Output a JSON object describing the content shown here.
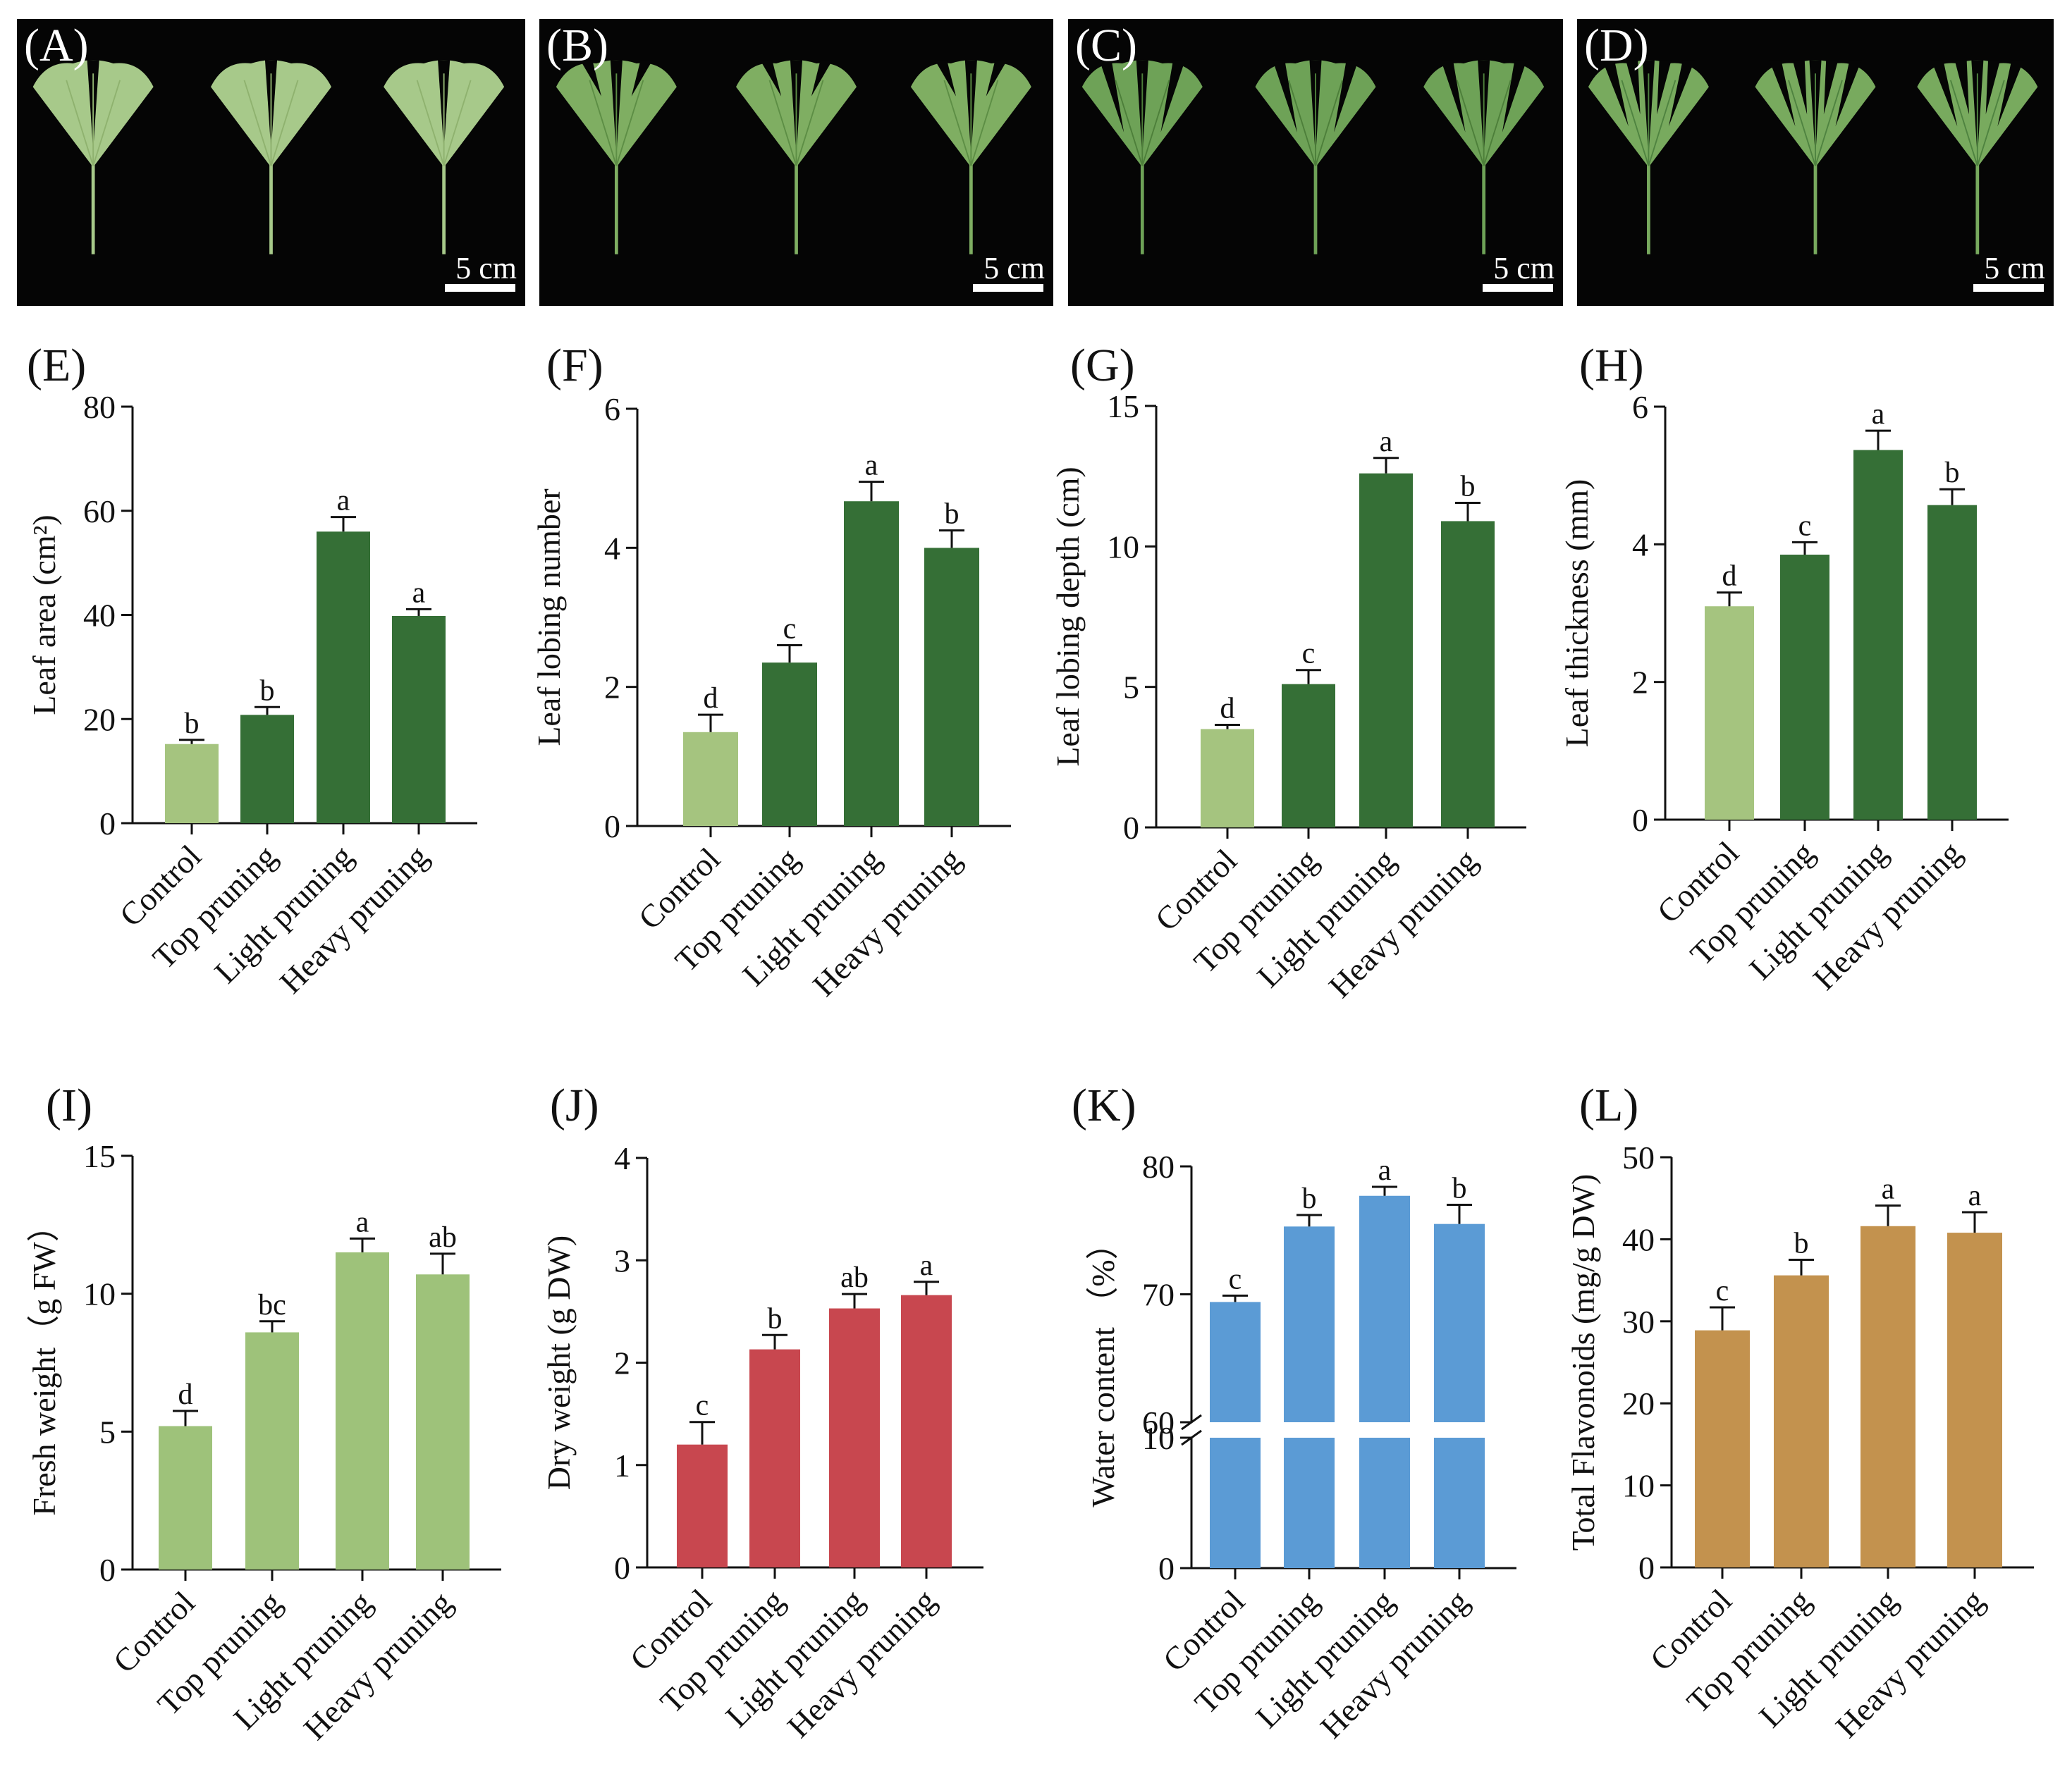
{
  "photos": [
    {
      "letter": "(A)",
      "scale_label": "5 cm",
      "leaf_color": "#a7c98a",
      "leaf_dark": "#8fb26f",
      "leaf_style": "fan"
    },
    {
      "letter": "(B)",
      "scale_label": "5 cm",
      "leaf_color": "#7fae62",
      "leaf_dark": "#5d8e45",
      "leaf_style": "cleft"
    },
    {
      "letter": "(C)",
      "scale_label": "5 cm",
      "leaf_color": "#6ea257",
      "leaf_dark": "#4d7f3a",
      "leaf_style": "deep"
    },
    {
      "letter": "(D)",
      "scale_label": "5 cm",
      "leaf_color": "#78aa5e",
      "leaf_dark": "#4f8340",
      "leaf_style": "lobed"
    }
  ],
  "chart_data": [
    {
      "panel": "(E)",
      "type": "bar",
      "ylabel": "Leaf area (cm²)",
      "categories": [
        "Control",
        "Top pruning",
        "Light pruning",
        "Heavy pruning"
      ],
      "values": [
        15.2,
        20.8,
        56,
        39.8
      ],
      "errors": [
        0.8,
        1.5,
        2.8,
        1.3
      ],
      "letters": [
        "b",
        "b",
        "a",
        "a"
      ],
      "ylim": [
        0,
        80
      ],
      "yticks": [
        0,
        20,
        40,
        60,
        80
      ],
      "colors": [
        "#a5c47f",
        "#356f36",
        "#356f36",
        "#356f36"
      ]
    },
    {
      "panel": "(F)",
      "type": "bar",
      "ylabel": "Leaf lobing number",
      "categories": [
        "Control",
        "Top pruning",
        "Light pruning",
        "Heavy pruning"
      ],
      "values": [
        1.35,
        2.35,
        4.67,
        4.0
      ],
      "errors": [
        0.25,
        0.25,
        0.28,
        0.25
      ],
      "letters": [
        "d",
        "c",
        "a",
        "b"
      ],
      "ylim": [
        0,
        6
      ],
      "yticks": [
        0,
        2,
        4,
        6
      ],
      "colors": [
        "#a5c47f",
        "#356f36",
        "#356f36",
        "#356f36"
      ]
    },
    {
      "panel": "(G)",
      "type": "bar",
      "ylabel": "Leaf lobing depth (cm)",
      "categories": [
        "Control",
        "Top pruning",
        "Light pruning",
        "Heavy pruning"
      ],
      "values": [
        3.5,
        5.1,
        12.6,
        10.9
      ],
      "errors": [
        0.15,
        0.5,
        0.55,
        0.65
      ],
      "letters": [
        "d",
        "c",
        "a",
        "b"
      ],
      "ylim": [
        0,
        15
      ],
      "yticks": [
        0,
        5,
        10,
        15
      ],
      "colors": [
        "#a5c47f",
        "#356f36",
        "#356f36",
        "#356f36"
      ]
    },
    {
      "panel": "(H)",
      "type": "bar",
      "ylabel": "Leaf thickness (mm)",
      "categories": [
        "Control",
        "Top pruning",
        "Light pruning",
        "Heavy pruning"
      ],
      "values": [
        3.1,
        3.85,
        5.37,
        4.57
      ],
      "errors": [
        0.2,
        0.18,
        0.28,
        0.23
      ],
      "letters": [
        "d",
        "c",
        "a",
        "b"
      ],
      "ylim": [
        0,
        6
      ],
      "yticks": [
        0,
        2,
        4,
        6
      ],
      "colors": [
        "#a5c47f",
        "#356f36",
        "#356f36",
        "#356f36"
      ]
    },
    {
      "panel": "(I)",
      "type": "bar",
      "ylabel": "Fresh weight（g FW）",
      "categories": [
        "Control",
        "Top pruning",
        "Light pruning",
        "Heavy pruning"
      ],
      "values": [
        5.2,
        8.6,
        11.5,
        10.7
      ],
      "errors": [
        0.55,
        0.4,
        0.5,
        0.75
      ],
      "letters": [
        "d",
        "bc",
        "a",
        "ab"
      ],
      "ylim": [
        0,
        15
      ],
      "yticks": [
        0,
        5,
        10,
        15
      ],
      "colors": [
        "#9ec27a",
        "#9ec27a",
        "#9ec27a",
        "#9ec27a"
      ]
    },
    {
      "panel": "(J)",
      "type": "bar",
      "ylabel": "Dry weight (g DW)",
      "categories": [
        "Control",
        "Top pruning",
        "Light pruning",
        "Heavy pruning"
      ],
      "values": [
        1.2,
        2.13,
        2.53,
        2.66
      ],
      "errors": [
        0.22,
        0.14,
        0.14,
        0.13
      ],
      "letters": [
        "c",
        "b",
        "ab",
        "a"
      ],
      "ylim": [
        0,
        4
      ],
      "yticks": [
        0,
        1,
        2,
        3,
        4
      ],
      "colors": [
        "#c8474f",
        "#c8474f",
        "#c8474f",
        "#c8474f"
      ]
    },
    {
      "panel": "(K)",
      "type": "bar",
      "ylabel": "Water content （%）",
      "categories": [
        "Control",
        "Top pruning",
        "Light pruning",
        "Heavy pruning"
      ],
      "values": [
        69.4,
        75.3,
        77.7,
        75.5
      ],
      "errors": [
        0.5,
        0.9,
        0.7,
        1.5
      ],
      "letters": [
        "c",
        "b",
        "a",
        "b"
      ],
      "ylim": [
        0,
        80
      ],
      "yticks": [
        0,
        10,
        60,
        70,
        80
      ],
      "axis_break": [
        10,
        60
      ],
      "colors": [
        "#5b9bd5",
        "#5b9bd5",
        "#5b9bd5",
        "#5b9bd5"
      ]
    },
    {
      "panel": "(L)",
      "type": "bar",
      "ylabel": "Total Flavonoids (mg/g DW)",
      "categories": [
        "Control",
        "Top pruning",
        "Light pruning",
        "Heavy pruning"
      ],
      "values": [
        28.9,
        35.6,
        41.6,
        40.8
      ],
      "errors": [
        2.8,
        1.9,
        2.5,
        2.5
      ],
      "letters": [
        "c",
        "b",
        "a",
        "a"
      ],
      "ylim": [
        0,
        50
      ],
      "yticks": [
        0,
        10,
        20,
        30,
        40,
        50
      ],
      "colors": [
        "#c3924e",
        "#c3924e",
        "#c3924e",
        "#c3924e"
      ]
    }
  ]
}
